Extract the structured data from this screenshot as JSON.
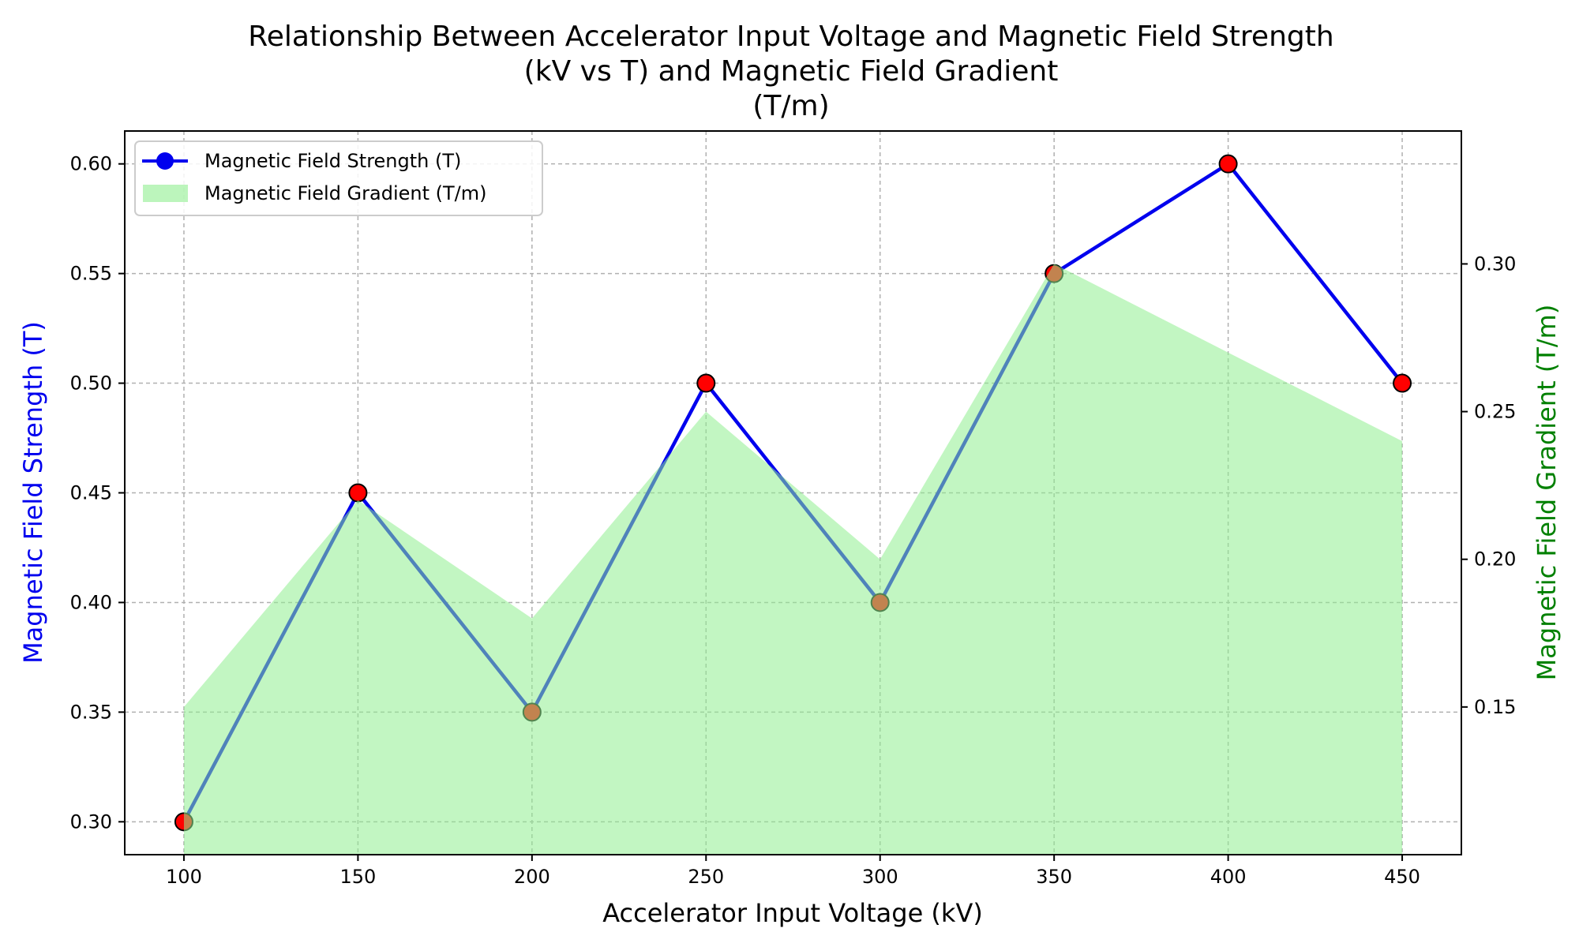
{
  "chart_data": {
    "type": "line",
    "title_lines": [
      "Relationship Between Accelerator Input Voltage and Magnetic Field Strength",
      "(kV vs T) and Magnetic Field Gradient",
      "(T/m)"
    ],
    "xlabel": "Accelerator Input Voltage (kV)",
    "ylabel_left": "Magnetic Field Strength (T)",
    "ylabel_right": "Magnetic Field Gradient (T/m)",
    "x": [
      100,
      150,
      200,
      250,
      300,
      350,
      400,
      450
    ],
    "xticks": [
      "100",
      "150",
      "200",
      "250",
      "300",
      "350",
      "400",
      "450"
    ],
    "xlim": [
      83,
      467
    ],
    "ylim_left": [
      0.285,
      0.615
    ],
    "yticks_left": [
      "0.30",
      "0.35",
      "0.40",
      "0.45",
      "0.50",
      "0.55",
      "0.60"
    ],
    "ylim_right": [
      0.1,
      0.345
    ],
    "yticks_right": [
      "0.15",
      "0.20",
      "0.25",
      "0.30"
    ],
    "grid": true,
    "legend_position": "upper-left",
    "series": [
      {
        "name": "Magnetic Field Strength (T)",
        "axis": "left",
        "kind": "line-markers",
        "values": [
          0.3,
          0.45,
          0.35,
          0.5,
          0.4,
          0.55,
          0.6,
          0.5
        ],
        "color": "#0000ee",
        "marker_color": "#ff0000"
      },
      {
        "name": "Magnetic Field Gradient (T/m)",
        "axis": "right",
        "kind": "area",
        "values": [
          0.15,
          0.22,
          0.18,
          0.25,
          0.2,
          0.3,
          0.27,
          0.24
        ],
        "color": "#90ee90"
      }
    ],
    "colors": {
      "left_axis_label": "#0000ee",
      "right_axis_label": "#008000",
      "grid": "#b0b0b0"
    }
  }
}
